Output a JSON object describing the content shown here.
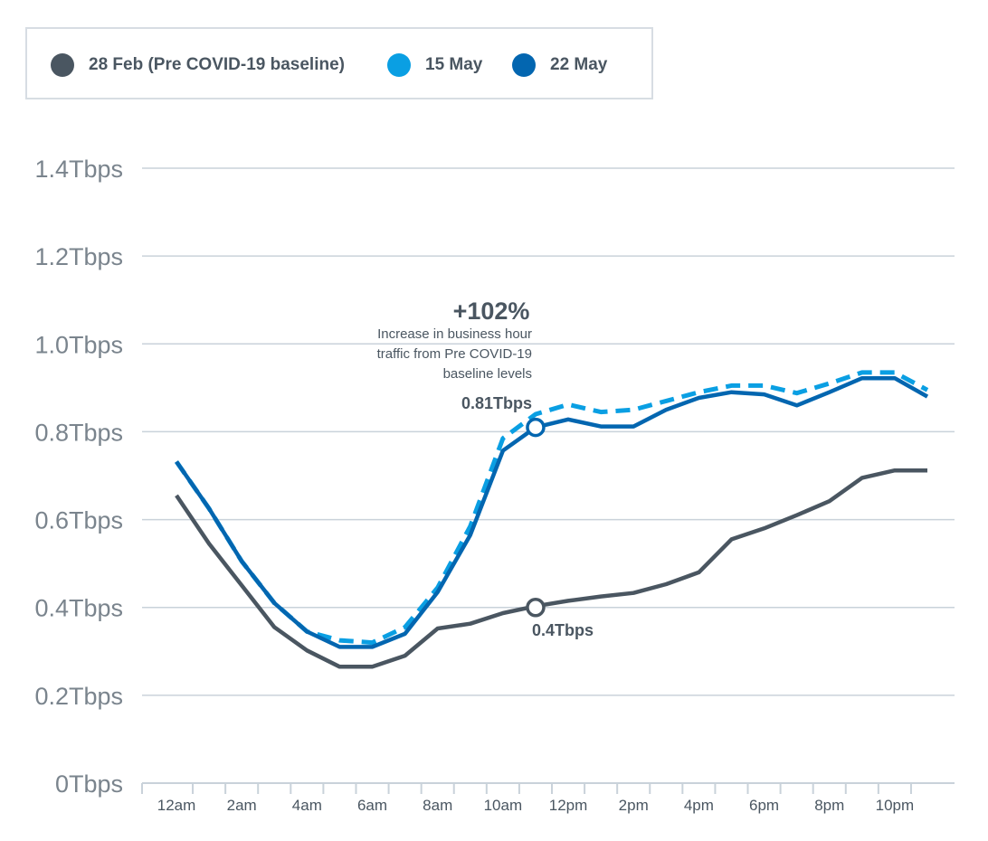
{
  "chart_data": {
    "type": "line",
    "title": "",
    "xlabel": "",
    "ylabel": "",
    "ylim": [
      0,
      1.4
    ],
    "grid": true,
    "legend_position": "top-left",
    "y_ticks": [
      {
        "value": 0,
        "label": "0Tbps"
      },
      {
        "value": 0.2,
        "label": "0.2Tbps"
      },
      {
        "value": 0.4,
        "label": "0.4Tbps"
      },
      {
        "value": 0.6,
        "label": "0.6Tbps"
      },
      {
        "value": 0.8,
        "label": "0.8Tbps"
      },
      {
        "value": 1.0,
        "label": "1.0Tbps"
      },
      {
        "value": 1.2,
        "label": "1.2Tbps"
      },
      {
        "value": 1.4,
        "label": "1.4Tbps"
      }
    ],
    "x": [
      0,
      1,
      2,
      3,
      4,
      5,
      6,
      7,
      8,
      9,
      10,
      11,
      12,
      13,
      14,
      15,
      16,
      17,
      18,
      19,
      20,
      21,
      22,
      23
    ],
    "x_ticks": [
      {
        "value": 0,
        "label": "12am"
      },
      {
        "value": 2,
        "label": "2am"
      },
      {
        "value": 4,
        "label": "4am"
      },
      {
        "value": 6,
        "label": "6am"
      },
      {
        "value": 8,
        "label": "8am"
      },
      {
        "value": 10,
        "label": "10am"
      },
      {
        "value": 12,
        "label": "12pm"
      },
      {
        "value": 14,
        "label": "2pm"
      },
      {
        "value": 16,
        "label": "4pm"
      },
      {
        "value": 18,
        "label": "6pm"
      },
      {
        "value": 20,
        "label": "8pm"
      },
      {
        "value": 22,
        "label": "10pm"
      }
    ],
    "series": [
      {
        "name": "28 Feb (Pre COVID-19 baseline)",
        "color": "#4a5661",
        "style": "solid",
        "values": [
          0.655,
          0.545,
          0.45,
          0.355,
          0.302,
          0.265,
          0.265,
          0.29,
          0.352,
          0.363,
          0.387,
          0.403,
          0.415,
          0.425,
          0.433,
          0.453,
          0.48,
          0.555,
          0.58,
          0.61,
          0.642,
          0.695,
          0.712,
          0.712
        ]
      },
      {
        "name": "15 May",
        "color": "#0a9fe3",
        "style": "dashed",
        "values": [
          0.732,
          0.625,
          0.505,
          0.41,
          0.345,
          0.325,
          0.32,
          0.355,
          0.445,
          0.585,
          0.785,
          0.84,
          0.862,
          0.845,
          0.85,
          0.87,
          0.89,
          0.905,
          0.905,
          0.888,
          0.91,
          0.935,
          0.935,
          0.895
        ]
      },
      {
        "name": "22 May",
        "color": "#0366b0",
        "style": "solid",
        "values": [
          0.732,
          0.625,
          0.505,
          0.41,
          0.345,
          0.31,
          0.31,
          0.34,
          0.435,
          0.565,
          0.757,
          0.81,
          0.828,
          0.812,
          0.812,
          0.85,
          0.877,
          0.89,
          0.885,
          0.86,
          0.89,
          0.922,
          0.922,
          0.88
        ]
      }
    ],
    "annotations": {
      "headline": "+102%",
      "description": [
        "Increase in business hour",
        "traffic from Pre COVID-19",
        "baseline levels"
      ],
      "markers": [
        {
          "x": 11,
          "y": 0.81,
          "label": "0.81Tbps",
          "series": "22 May"
        },
        {
          "x": 11,
          "y": 0.4,
          "label": "0.4Tbps",
          "series": "28 Feb (Pre COVID-19 baseline)"
        }
      ]
    }
  }
}
